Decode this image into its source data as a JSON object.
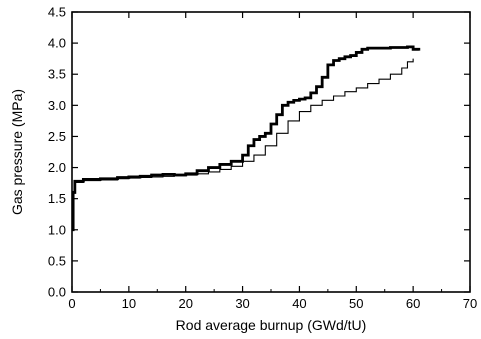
{
  "chart_data": {
    "type": "line",
    "title": "",
    "xlabel": "Rod average burnup (GWd/tU)",
    "ylabel": "Gas pressure (MPa)",
    "xlim": [
      0,
      70
    ],
    "ylim": [
      0.0,
      4.5
    ],
    "grid": false,
    "legend": "none",
    "x_ticks": [
      0,
      10,
      20,
      30,
      40,
      50,
      60,
      70
    ],
    "y_ticks": [
      0.0,
      0.5,
      1.0,
      1.5,
      2.0,
      2.5,
      3.0,
      3.5,
      4.0,
      4.5
    ],
    "x_tick_labels": [
      "0",
      "10",
      "20",
      "30",
      "40",
      "50",
      "60",
      "70"
    ],
    "y_tick_labels": [
      "0.0",
      "0.5",
      "1.0",
      "1.5",
      "2.0",
      "2.5",
      "3.0",
      "3.5",
      "4.0",
      "4.5"
    ],
    "series": [
      {
        "line_style": "thick",
        "color": "#000000",
        "points": [
          [
            0,
            1.0
          ],
          [
            0.2,
            1.6
          ],
          [
            0.5,
            1.78
          ],
          [
            2,
            1.81
          ],
          [
            5,
            1.82
          ],
          [
            8,
            1.84
          ],
          [
            10,
            1.85
          ],
          [
            12,
            1.86
          ],
          [
            14,
            1.88
          ],
          [
            16,
            1.89
          ],
          [
            18,
            1.88
          ],
          [
            20,
            1.9
          ],
          [
            22,
            1.95
          ],
          [
            24,
            2.0
          ],
          [
            26,
            2.05
          ],
          [
            28,
            2.1
          ],
          [
            30,
            2.2
          ],
          [
            31,
            2.35
          ],
          [
            32,
            2.45
          ],
          [
            33,
            2.5
          ],
          [
            34,
            2.55
          ],
          [
            35,
            2.7
          ],
          [
            36,
            2.85
          ],
          [
            37,
            3.0
          ],
          [
            38,
            3.05
          ],
          [
            39,
            3.08
          ],
          [
            40,
            3.1
          ],
          [
            41,
            3.12
          ],
          [
            42,
            3.2
          ],
          [
            43,
            3.3
          ],
          [
            44,
            3.45
          ],
          [
            45,
            3.65
          ],
          [
            46,
            3.72
          ],
          [
            47,
            3.75
          ],
          [
            48,
            3.78
          ],
          [
            49,
            3.8
          ],
          [
            50,
            3.85
          ],
          [
            51,
            3.9
          ],
          [
            52,
            3.92
          ],
          [
            54,
            3.92
          ],
          [
            56,
            3.93
          ],
          [
            58,
            3.93
          ],
          [
            59,
            3.94
          ],
          [
            60,
            3.9
          ],
          [
            61,
            3.88
          ]
        ]
      },
      {
        "line_style": "thin",
        "color": "#000000",
        "points": [
          [
            0,
            1.0
          ],
          [
            0.2,
            1.6
          ],
          [
            0.5,
            1.76
          ],
          [
            2,
            1.79
          ],
          [
            5,
            1.8
          ],
          [
            8,
            1.82
          ],
          [
            10,
            1.83
          ],
          [
            12,
            1.84
          ],
          [
            14,
            1.85
          ],
          [
            16,
            1.86
          ],
          [
            18,
            1.87
          ],
          [
            20,
            1.88
          ],
          [
            22,
            1.9
          ],
          [
            24,
            1.93
          ],
          [
            26,
            1.97
          ],
          [
            28,
            2.02
          ],
          [
            30,
            2.1
          ],
          [
            32,
            2.2
          ],
          [
            34,
            2.35
          ],
          [
            36,
            2.55
          ],
          [
            38,
            2.75
          ],
          [
            40,
            2.9
          ],
          [
            42,
            3.0
          ],
          [
            44,
            3.08
          ],
          [
            46,
            3.15
          ],
          [
            48,
            3.22
          ],
          [
            50,
            3.28
          ],
          [
            52,
            3.35
          ],
          [
            54,
            3.42
          ],
          [
            56,
            3.5
          ],
          [
            58,
            3.6
          ],
          [
            59,
            3.7
          ],
          [
            60,
            3.75
          ]
        ]
      }
    ]
  }
}
